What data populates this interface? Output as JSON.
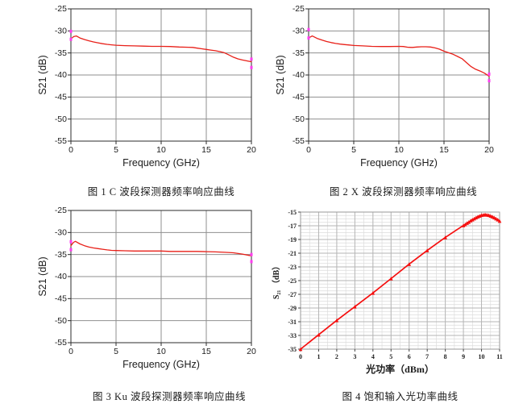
{
  "page": {
    "background": "#ffffff"
  },
  "figures": [
    {
      "caption": "图 1 C 波段探测器频率响应曲线"
    },
    {
      "caption": "图 2 X 波段探测器频率响应曲线"
    },
    {
      "caption": "图 3 Ku 波段探测器频率响应曲线"
    },
    {
      "caption": "图 4 饱和输入光功率曲线"
    }
  ],
  "chart_data": [
    {
      "type": "line",
      "title": "图 1 C 波段探测器频率响应曲线",
      "xlabel": "Frequency (GHz)",
      "ylabel": "S21 (dB)",
      "xlim": [
        0,
        20
      ],
      "ylim": [
        -55,
        -25
      ],
      "xticks": [
        0,
        5,
        10,
        15,
        20
      ],
      "yticks": [
        -25,
        -30,
        -35,
        -40,
        -45,
        -50,
        -55
      ],
      "grid_x": [
        5,
        10,
        15
      ],
      "grid_y": [
        -30,
        -35,
        -40,
        -45,
        -50
      ],
      "grid_color": "#8f8f8f",
      "border_color": "#2b2b2b",
      "axis_color": "#2b2b2b",
      "endpoint_marker_color": "#ff3df0",
      "endpoint_markers": [
        [
          0,
          -30.1
        ],
        [
          0,
          -31.9
        ],
        [
          20,
          -36.4
        ],
        [
          20,
          -38.3
        ]
      ],
      "series": [
        {
          "name": "S21",
          "color": "#e82019",
          "width": 1.3,
          "points": [
            [
              0,
              -31.8
            ],
            [
              0.3,
              -31.3
            ],
            [
              0.6,
              -31.15
            ],
            [
              1,
              -31.6
            ],
            [
              1.5,
              -31.95
            ],
            [
              2,
              -32.25
            ],
            [
              2.5,
              -32.5
            ],
            [
              3,
              -32.7
            ],
            [
              3.5,
              -32.9
            ],
            [
              4,
              -33.05
            ],
            [
              4.5,
              -33.15
            ],
            [
              5,
              -33.25
            ],
            [
              5.5,
              -33.3
            ],
            [
              6,
              -33.35
            ],
            [
              7,
              -33.4
            ],
            [
              8,
              -33.45
            ],
            [
              9,
              -33.5
            ],
            [
              10,
              -33.5
            ],
            [
              11,
              -33.55
            ],
            [
              12,
              -33.65
            ],
            [
              13,
              -33.7
            ],
            [
              13.5,
              -33.75
            ],
            [
              14,
              -33.9
            ],
            [
              14.5,
              -34.05
            ],
            [
              15,
              -34.2
            ],
            [
              15.5,
              -34.35
            ],
            [
              16,
              -34.5
            ],
            [
              16.5,
              -34.7
            ],
            [
              17,
              -34.95
            ],
            [
              17.5,
              -35.45
            ],
            [
              18,
              -35.95
            ],
            [
              18.5,
              -36.35
            ],
            [
              19,
              -36.6
            ],
            [
              19.5,
              -36.8
            ],
            [
              20,
              -37.0
            ]
          ]
        }
      ]
    },
    {
      "type": "line",
      "title": "图 2 X 波段探测器频率响应曲线",
      "xlabel": "Frequency (GHz)",
      "ylabel": "S21 (dB)",
      "xlim": [
        0,
        20
      ],
      "ylim": [
        -55,
        -25
      ],
      "xticks": [
        0,
        5,
        10,
        15,
        20
      ],
      "yticks": [
        -25,
        -30,
        -35,
        -40,
        -45,
        -50,
        -55
      ],
      "grid_x": [
        5,
        10,
        15
      ],
      "grid_y": [
        -30,
        -35,
        -40,
        -45,
        -50
      ],
      "grid_color": "#8f8f8f",
      "border_color": "#2b2b2b",
      "axis_color": "#2b2b2b",
      "endpoint_marker_color": "#ff3df0",
      "endpoint_markers": [
        [
          0,
          -29.7
        ],
        [
          0,
          -31.6
        ],
        [
          20,
          -39.8
        ],
        [
          20,
          -41.3
        ]
      ],
      "series": [
        {
          "name": "S21",
          "color": "#e82019",
          "width": 1.3,
          "points": [
            [
              0,
              -31.6
            ],
            [
              0.4,
              -31.15
            ],
            [
              1,
              -31.75
            ],
            [
              1.5,
              -32.1
            ],
            [
              2,
              -32.4
            ],
            [
              2.5,
              -32.65
            ],
            [
              3,
              -32.85
            ],
            [
              3.5,
              -33.0
            ],
            [
              4,
              -33.1
            ],
            [
              4.5,
              -33.2
            ],
            [
              5,
              -33.3
            ],
            [
              6,
              -33.4
            ],
            [
              7,
              -33.5
            ],
            [
              8,
              -33.55
            ],
            [
              9,
              -33.55
            ],
            [
              10,
              -33.5
            ],
            [
              10.5,
              -33.55
            ],
            [
              11,
              -33.7
            ],
            [
              11.5,
              -33.75
            ],
            [
              12,
              -33.65
            ],
            [
              12.5,
              -33.6
            ],
            [
              13,
              -33.6
            ],
            [
              13.5,
              -33.65
            ],
            [
              14,
              -33.85
            ],
            [
              14.5,
              -34.15
            ],
            [
              15,
              -34.6
            ],
            [
              15.5,
              -34.95
            ],
            [
              16,
              -35.3
            ],
            [
              16.5,
              -35.8
            ],
            [
              17,
              -36.3
            ],
            [
              17.5,
              -37.2
            ],
            [
              18,
              -38.1
            ],
            [
              18.5,
              -38.7
            ],
            [
              19,
              -39.1
            ],
            [
              19.5,
              -39.6
            ],
            [
              20,
              -40.3
            ]
          ]
        }
      ]
    },
    {
      "type": "line",
      "title": "图 3 Ku 波段探测器频率响应曲线",
      "xlabel": "Frequency (GHz)",
      "ylabel": "S21 (dB)",
      "xlim": [
        0,
        20
      ],
      "ylim": [
        -55,
        -25
      ],
      "xticks": [
        0,
        5,
        10,
        15,
        20
      ],
      "yticks": [
        -25,
        -30,
        -35,
        -40,
        -45,
        -50,
        -55
      ],
      "grid_x": [
        5,
        10,
        15
      ],
      "grid_y": [
        -30,
        -35,
        -40,
        -45,
        -50
      ],
      "grid_color": "#8f8f8f",
      "border_color": "#2b2b2b",
      "axis_color": "#2b2b2b",
      "endpoint_marker_color": "#ff3df0",
      "endpoint_markers": [
        [
          0,
          -32.1
        ],
        [
          0,
          -33.9
        ],
        [
          20,
          -35.0
        ],
        [
          20,
          -36.6
        ]
      ],
      "series": [
        {
          "name": "S21",
          "color": "#e82019",
          "width": 1.3,
          "points": [
            [
              0,
              -33.0
            ],
            [
              0.3,
              -32.2
            ],
            [
              0.5,
              -32.0
            ],
            [
              1,
              -32.6
            ],
            [
              1.5,
              -33.0
            ],
            [
              2,
              -33.3
            ],
            [
              2.5,
              -33.5
            ],
            [
              3,
              -33.65
            ],
            [
              3.5,
              -33.8
            ],
            [
              4,
              -33.95
            ],
            [
              4.5,
              -34.05
            ],
            [
              5,
              -34.1
            ],
            [
              6,
              -34.15
            ],
            [
              7,
              -34.2
            ],
            [
              8,
              -34.2
            ],
            [
              9,
              -34.2
            ],
            [
              10,
              -34.2
            ],
            [
              11,
              -34.3
            ],
            [
              12,
              -34.3
            ],
            [
              13,
              -34.3
            ],
            [
              14,
              -34.3
            ],
            [
              15,
              -34.35
            ],
            [
              16,
              -34.4
            ],
            [
              17,
              -34.5
            ],
            [
              18,
              -34.6
            ],
            [
              19,
              -34.9
            ],
            [
              20,
              -35.3
            ]
          ]
        }
      ]
    },
    {
      "type": "line",
      "title": "图 4 饱和输入光功率曲线",
      "xlabel": "光功率（dBm）",
      "ylabel": "S₂₁ （dB）",
      "xlim": [
        0,
        11
      ],
      "ylim": [
        -35,
        -15
      ],
      "xticks": [
        0,
        1,
        2,
        3,
        4,
        5,
        6,
        7,
        8,
        9,
        10,
        11
      ],
      "yticks": [
        -15,
        -17,
        -19,
        -21,
        -23,
        -25,
        -27,
        -29,
        -31,
        -33,
        -35
      ],
      "grid_x": [
        1,
        2,
        3,
        4,
        5,
        6,
        7,
        8,
        9,
        10
      ],
      "grid_y": [
        -17,
        -19,
        -21,
        -23,
        -25,
        -27,
        -29,
        -31,
        -33
      ],
      "grid_minor": {
        "dx": 0.5,
        "dy": 0.5,
        "color": "#dcdcdc"
      },
      "grid_color": "#b5b5b5",
      "border_color": "#9a9a9a",
      "axis_color": "#444444",
      "endpoint_marker_color": "#ff3df0",
      "endpoint_markers": [],
      "series": [
        {
          "name": "S21",
          "color": "#f50f0f",
          "width": 1.7,
          "marker": "triangle",
          "marker_size": 2.3,
          "points": [
            [
              0,
              -35.0
            ],
            [
              1,
              -32.9
            ],
            [
              2,
              -30.8
            ],
            [
              3,
              -28.8
            ],
            [
              4,
              -26.8
            ],
            [
              5,
              -24.7
            ],
            [
              6,
              -22.6
            ],
            [
              7,
              -20.6
            ],
            [
              8,
              -18.7
            ],
            [
              9,
              -16.95
            ],
            [
              9.1,
              -16.8
            ],
            [
              9.2,
              -16.6
            ],
            [
              9.3,
              -16.45
            ],
            [
              9.4,
              -16.25
            ],
            [
              9.5,
              -16.1
            ],
            [
              9.6,
              -15.95
            ],
            [
              9.7,
              -15.8
            ],
            [
              9.8,
              -15.65
            ],
            [
              9.9,
              -15.55
            ],
            [
              10,
              -15.45
            ],
            [
              10.1,
              -15.4
            ],
            [
              10.2,
              -15.35
            ],
            [
              10.3,
              -15.4
            ],
            [
              10.4,
              -15.45
            ],
            [
              10.5,
              -15.55
            ],
            [
              10.6,
              -15.65
            ],
            [
              10.7,
              -15.8
            ],
            [
              10.8,
              -15.95
            ],
            [
              10.9,
              -16.1
            ],
            [
              11,
              -16.3
            ]
          ]
        }
      ]
    }
  ]
}
